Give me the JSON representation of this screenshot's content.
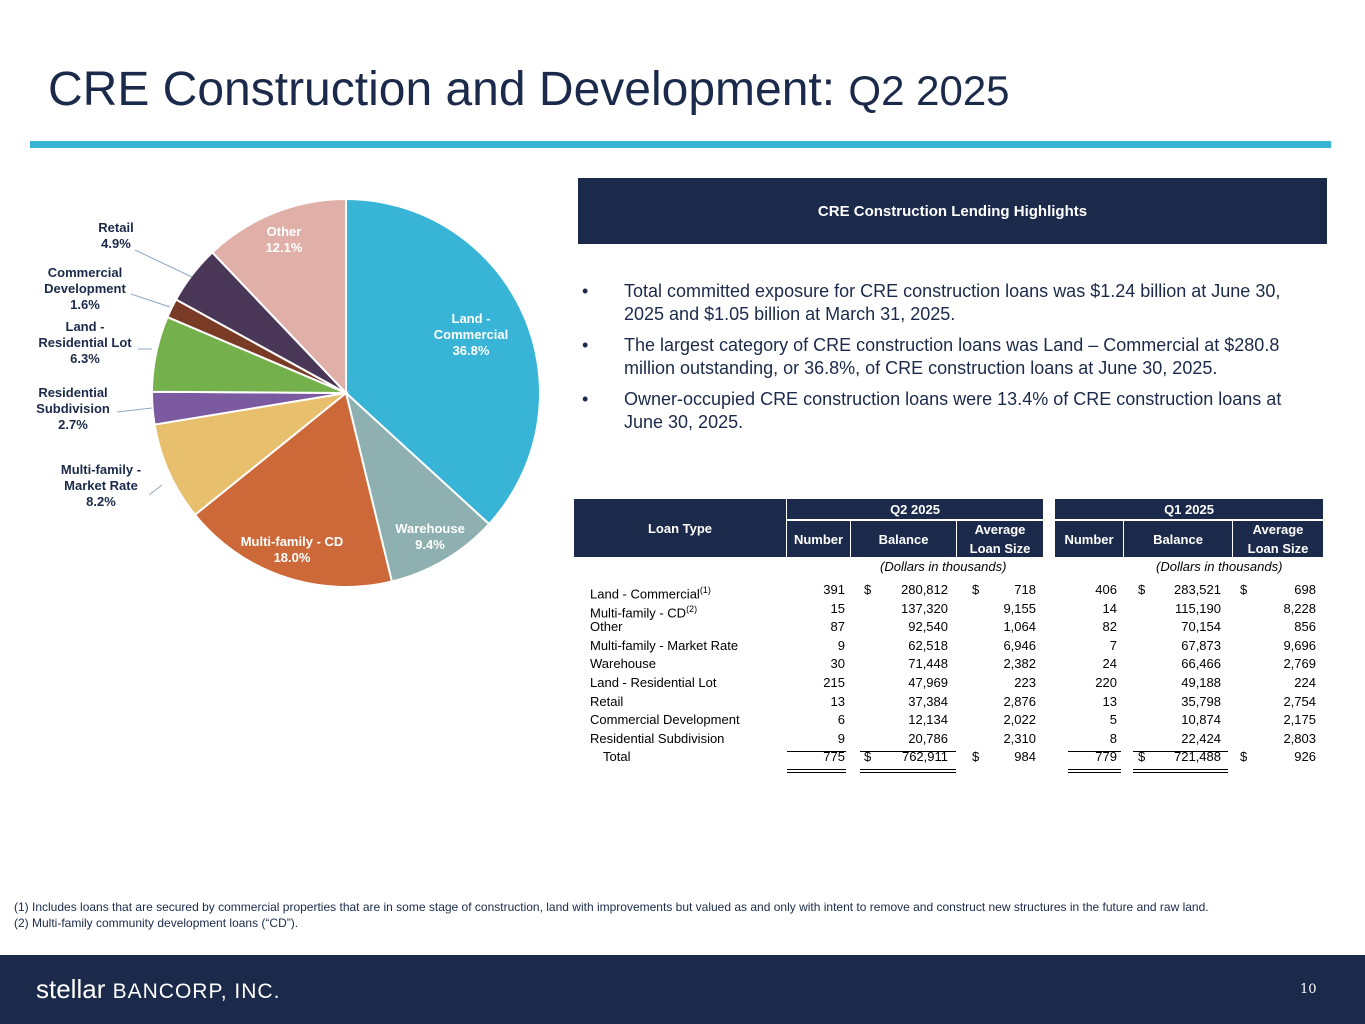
{
  "title": {
    "main": "CRE Construction and Development:",
    "quarter": "Q2 2025"
  },
  "colors": {
    "navy": "#1b2a4a",
    "accent": "#37b4d2"
  },
  "chart_data": {
    "type": "pie",
    "title": "",
    "slices": [
      {
        "name": "Land - Commercial",
        "label_lines": [
          "Land -",
          "Commercial"
        ],
        "value": 36.8,
        "value_label": "36.8%",
        "color": "#37b4d6"
      },
      {
        "name": "Warehouse",
        "label_lines": [
          "Warehouse"
        ],
        "value": 9.4,
        "value_label": "9.4%",
        "color": "#8eb0b0"
      },
      {
        "name": "Multi-family - CD",
        "label_lines": [
          "Multi-family - CD"
        ],
        "value": 18.0,
        "value_label": "18.0%",
        "color": "#cd6938"
      },
      {
        "name": "Multi-family - Market Rate",
        "label_lines": [
          "Multi-family -",
          "Market Rate"
        ],
        "value": 8.2,
        "value_label": "8.2%",
        "color": "#e7bf6d"
      },
      {
        "name": "Residential Subdivision",
        "label_lines": [
          "Residential",
          "Subdivision"
        ],
        "value": 2.7,
        "value_label": "2.7%",
        "color": "#7c5a9f"
      },
      {
        "name": "Land - Residential Lot",
        "label_lines": [
          "Land -",
          "Residential Lot"
        ],
        "value": 6.3,
        "value_label": "6.3%",
        "color": "#74b04b"
      },
      {
        "name": "Commercial Development",
        "label_lines": [
          "Commercial",
          "Development"
        ],
        "value": 1.6,
        "value_label": "1.6%",
        "color": "#7a3b26"
      },
      {
        "name": "Retail",
        "label_lines": [
          "Retail"
        ],
        "value": 4.9,
        "value_label": "4.9%",
        "color": "#4a3758"
      },
      {
        "name": "Other",
        "label_lines": [
          "Other"
        ],
        "value": 12.1,
        "value_label": "12.1%",
        "color": "#e0b0a8"
      }
    ]
  },
  "highlights": {
    "heading": "CRE Construction Lending Highlights",
    "bullet_char": "•",
    "bullets": [
      "Total committed exposure for CRE construction loans was $1.24 billion at June 30, 2025 and $1.05 billion at March 31, 2025.",
      "The largest category of CRE construction loans was Land – Commercial at $280.8 million outstanding, or 36.8%, of CRE construction loans at June 30, 2025.",
      "Owner-occupied CRE construction loans were 13.4% of CRE construction loans at June 30, 2025."
    ]
  },
  "table": {
    "loan_type_header": "Loan Type",
    "periods": [
      "Q2 2025",
      "Q1 2025"
    ],
    "col_number": "Number",
    "col_balance": "Balance",
    "col_avg": "Average Loan Size",
    "units_note": "(Dollars in thousands)",
    "currency": "$",
    "rows": [
      {
        "type": "Land - Commercial",
        "sup": "(1)",
        "q2": [
          "391",
          "280,812",
          "718"
        ],
        "q1": [
          "406",
          "283,521",
          "698"
        ]
      },
      {
        "type": "Multi-family - CD",
        "sup": "(2)",
        "q2": [
          "15",
          "137,320",
          "9,155"
        ],
        "q1": [
          "14",
          "115,190",
          "8,228"
        ]
      },
      {
        "type": "Other",
        "sup": "",
        "q2": [
          "87",
          "92,540",
          "1,064"
        ],
        "q1": [
          "82",
          "70,154",
          "856"
        ]
      },
      {
        "type": "Multi-family - Market Rate",
        "sup": "",
        "q2": [
          "9",
          "62,518",
          "6,946"
        ],
        "q1": [
          "7",
          "67,873",
          "9,696"
        ]
      },
      {
        "type": "Warehouse",
        "sup": "",
        "q2": [
          "30",
          "71,448",
          "2,382"
        ],
        "q1": [
          "24",
          "66,466",
          "2,769"
        ]
      },
      {
        "type": "Land - Residential Lot",
        "sup": "",
        "q2": [
          "215",
          "47,969",
          "223"
        ],
        "q1": [
          "220",
          "49,188",
          "224"
        ]
      },
      {
        "type": "Retail",
        "sup": "",
        "q2": [
          "13",
          "37,384",
          "2,876"
        ],
        "q1": [
          "13",
          "35,798",
          "2,754"
        ]
      },
      {
        "type": "Commercial Development",
        "sup": "",
        "q2": [
          "6",
          "12,134",
          "2,022"
        ],
        "q1": [
          "5",
          "10,874",
          "2,175"
        ]
      },
      {
        "type": "Residential Subdivision",
        "sup": "",
        "q2": [
          "9",
          "20,786",
          "2,310"
        ],
        "q1": [
          "8",
          "22,424",
          "2,803"
        ]
      }
    ],
    "total": {
      "type": "Total",
      "q2": [
        "775",
        "762,911",
        "984"
      ],
      "q1": [
        "779",
        "721,488",
        "926"
      ]
    }
  },
  "footnotes": [
    "(1) Includes loans that are secured by commercial properties that are in some stage of construction, land with improvements but valued as and only with intent to remove and construct new structures in the future and raw land.",
    "(2) Multi-family community development loans (“CD”)."
  ],
  "footer": {
    "logo_word": "stellar",
    "logo_rest": "BANCORP, INC.",
    "page_number": "10"
  }
}
